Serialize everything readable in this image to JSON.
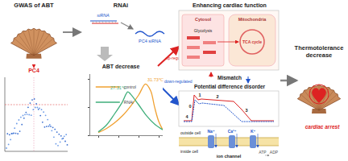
{
  "gwas": {
    "title": "GWAS of ABT",
    "gene": "PC4"
  },
  "rnai": {
    "title": "RNAi",
    "sirna": "siRNA",
    "target": "PC4 siRNA",
    "result": "ABT decrease"
  },
  "chart_data": {
    "type": "line",
    "xlim": [
      18,
      36
    ],
    "ylim": [
      0,
      110
    ],
    "xticks": [
      20,
      25,
      30,
      35
    ],
    "yticks": [
      0,
      50,
      100
    ],
    "tick_labels": false,
    "legend": "top left",
    "series": [
      {
        "name": "control",
        "color": "#f0a030",
        "x": [
          20,
          22,
          24,
          26,
          28,
          30,
          31.73,
          33,
          34,
          35,
          36
        ],
        "values": [
          5,
          12,
          22,
          35,
          52,
          72,
          92,
          80,
          50,
          25,
          10
        ]
      },
      {
        "name": "RNAi",
        "color": "#3fae7a",
        "x": [
          20,
          22,
          24,
          26,
          27.31,
          28,
          30,
          32,
          34,
          36
        ],
        "values": [
          6,
          18,
          38,
          60,
          78,
          74,
          55,
          35,
          20,
          10
        ]
      }
    ],
    "annotations": [
      {
        "text": "27.31℃",
        "series": "RNAi"
      },
      {
        "text": "31.73℃",
        "series": "control"
      }
    ]
  },
  "regulation": {
    "up": "up-regulated",
    "down": "down-regulated",
    "mismatch": "Mismatch"
  },
  "cardiac": {
    "title": "Enhancing cardiac function",
    "compartments": [
      "Cytosol",
      "Mitochondria"
    ],
    "pathways": [
      "Glycolysis",
      "TCA cycle"
    ]
  },
  "potential": {
    "title": "Potential difference disorder",
    "phases": [
      "0",
      "1",
      "2",
      "3",
      "4"
    ],
    "ions": [
      "Na⁺",
      "Ca²⁺",
      "K⁺"
    ],
    "outside": "outside cell",
    "inside": "inside cell",
    "channel": "ion channel",
    "energy": [
      "ATP",
      "ADP"
    ]
  },
  "outcome": {
    "title": "Thermotolerance decrease",
    "result": "cardiac arrest"
  }
}
